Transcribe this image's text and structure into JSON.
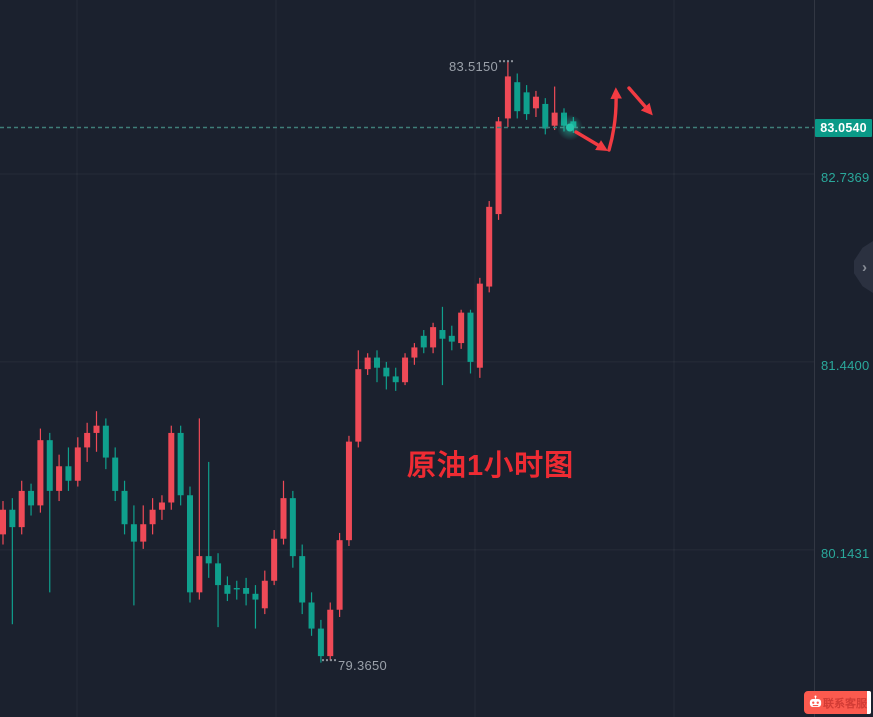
{
  "chart_overlay": {
    "instrument_title": "原油1小时图"
  },
  "price_axis": {
    "current_price_badge": "83.0540",
    "labels": [
      "82.7369",
      "81.4400",
      "80.1431"
    ],
    "label_prices": [
      82.7369,
      81.44,
      80.1431
    ],
    "label_color": "#2aa89b",
    "badge_color": "#0a9a88"
  },
  "annotations": {
    "high_price_label": "83.5150",
    "low_price_label": "79.3650",
    "arrow_color": "#f23b42",
    "arrows": [
      "pullback-down-right",
      "surge-up",
      "drop-down-right"
    ]
  },
  "side_panel": {
    "toggle_icon": "›"
  },
  "chat_widget": {
    "label": "联系客服",
    "icon": "robot-icon"
  },
  "chart_data": {
    "type": "candlestick",
    "title": "原油1小时图 (Crude Oil 1-hour chart)",
    "timeframe": "1H",
    "last_price": 83.054,
    "high": 83.515,
    "low": 79.365,
    "ylim": [
      78.99,
      83.94
    ],
    "up_color": "#ef4a57",
    "down_color": "#0fa08d",
    "color_convention": "red = up, green = down (Chinese convention)",
    "grid": true,
    "axis_tick_prices": [
      82.7369,
      81.44,
      80.1431
    ],
    "candles_ohlc": [
      [
        80.25,
        80.48,
        80.18,
        80.42
      ],
      [
        80.42,
        80.5,
        79.63,
        80.3
      ],
      [
        80.3,
        80.62,
        80.25,
        80.55
      ],
      [
        80.55,
        80.6,
        80.38,
        80.45
      ],
      [
        80.45,
        80.98,
        80.4,
        80.9
      ],
      [
        80.9,
        80.95,
        79.85,
        80.55
      ],
      [
        80.55,
        80.8,
        80.48,
        80.72
      ],
      [
        80.72,
        80.85,
        80.55,
        80.62
      ],
      [
        80.62,
        80.92,
        80.58,
        80.85
      ],
      [
        80.85,
        81.02,
        80.75,
        80.95
      ],
      [
        80.95,
        81.1,
        80.82,
        81.0
      ],
      [
        81.0,
        81.05,
        80.7,
        80.78
      ],
      [
        80.78,
        80.85,
        80.48,
        80.55
      ],
      [
        80.55,
        80.62,
        80.25,
        80.32
      ],
      [
        80.32,
        80.45,
        79.76,
        80.2
      ],
      [
        80.2,
        80.45,
        80.15,
        80.32
      ],
      [
        80.32,
        80.5,
        80.25,
        80.42
      ],
      [
        80.42,
        80.52,
        80.35,
        80.47
      ],
      [
        80.47,
        81.0,
        80.42,
        80.95
      ],
      [
        80.95,
        81.0,
        80.45,
        80.52
      ],
      [
        80.52,
        80.58,
        79.78,
        79.85
      ],
      [
        79.85,
        81.05,
        79.8,
        80.1
      ],
      [
        80.1,
        80.75,
        79.95,
        80.05
      ],
      [
        80.05,
        80.12,
        79.61,
        79.9
      ],
      [
        79.9,
        79.96,
        79.79,
        79.84
      ],
      [
        79.88,
        79.93,
        79.8,
        79.87
      ],
      [
        79.88,
        79.95,
        79.76,
        79.84
      ],
      [
        79.84,
        79.9,
        79.6,
        79.8
      ],
      [
        79.74,
        80.0,
        79.7,
        79.93
      ],
      [
        79.93,
        80.28,
        79.9,
        80.22
      ],
      [
        80.22,
        80.62,
        80.18,
        80.5
      ],
      [
        80.5,
        80.55,
        80.02,
        80.1
      ],
      [
        80.1,
        80.18,
        79.7,
        79.78
      ],
      [
        79.78,
        79.85,
        79.55,
        79.6
      ],
      [
        79.6,
        79.66,
        79.365,
        79.41
      ],
      [
        79.41,
        79.78,
        79.38,
        79.73
      ],
      [
        79.73,
        80.26,
        79.68,
        80.21
      ],
      [
        80.21,
        80.93,
        80.17,
        80.89
      ],
      [
        80.89,
        81.52,
        80.85,
        81.39
      ],
      [
        81.39,
        81.5,
        81.35,
        81.47
      ],
      [
        81.47,
        81.52,
        81.3,
        81.4
      ],
      [
        81.4,
        81.44,
        81.25,
        81.34
      ],
      [
        81.34,
        81.4,
        81.24,
        81.3
      ],
      [
        81.3,
        81.5,
        81.28,
        81.47
      ],
      [
        81.47,
        81.57,
        81.42,
        81.54
      ],
      [
        81.62,
        81.66,
        81.5,
        81.54
      ],
      [
        81.54,
        81.71,
        81.5,
        81.68
      ],
      [
        81.66,
        81.82,
        81.28,
        81.6
      ],
      [
        81.62,
        81.69,
        81.52,
        81.58
      ],
      [
        81.57,
        81.8,
        81.53,
        81.78
      ],
      [
        81.78,
        81.8,
        81.36,
        81.44
      ],
      [
        81.4,
        82.02,
        81.33,
        81.98
      ],
      [
        81.96,
        82.55,
        81.92,
        82.51
      ],
      [
        82.46,
        83.13,
        82.42,
        83.1
      ],
      [
        83.12,
        83.515,
        83.06,
        83.41
      ],
      [
        83.37,
        83.43,
        83.12,
        83.17
      ],
      [
        83.3,
        83.35,
        83.11,
        83.15
      ],
      [
        83.19,
        83.31,
        83.13,
        83.27
      ],
      [
        83.22,
        83.26,
        83.01,
        83.05
      ],
      [
        83.07,
        83.34,
        83.04,
        83.16
      ],
      [
        83.16,
        83.19,
        83.03,
        83.07
      ],
      [
        83.1,
        83.13,
        83.02,
        83.054
      ]
    ]
  }
}
